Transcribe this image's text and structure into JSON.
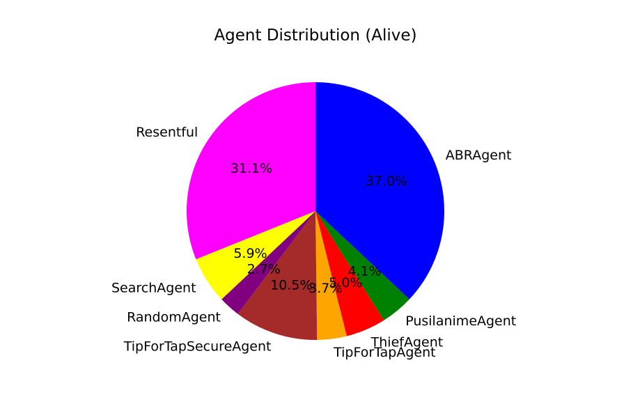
{
  "chart_data": {
    "type": "pie",
    "title": "Agent Distribution (Alive)",
    "slices": [
      {
        "label": "ABRAgent",
        "value": 37.0,
        "pct_label": "37.0%",
        "color": "#0000ff"
      },
      {
        "label": "PusilanimeAgent",
        "value": 4.1,
        "pct_label": "4.1%",
        "color": "#008000"
      },
      {
        "label": "ThiefAgent",
        "value": 5.0,
        "pct_label": "5.0%",
        "color": "#ff0000"
      },
      {
        "label": "TipForTapAgent",
        "value": 3.7,
        "pct_label": "3.7%",
        "color": "#ffa500"
      },
      {
        "label": "TipForTapSecureAgent",
        "value": 10.5,
        "pct_label": "10.5%",
        "color": "#a52a2a"
      },
      {
        "label": "RandomAgent",
        "value": 2.7,
        "pct_label": "2.7%",
        "color": "#800080"
      },
      {
        "label": "SearchAgent",
        "value": 5.9,
        "pct_label": "5.9%",
        "color": "#ffff00"
      },
      {
        "label": "Resentful",
        "value": 31.1,
        "pct_label": "31.1%",
        "color": "#ff00ff"
      }
    ],
    "start_angle_deg": 90,
    "direction": "clockwise",
    "legend": "none"
  }
}
